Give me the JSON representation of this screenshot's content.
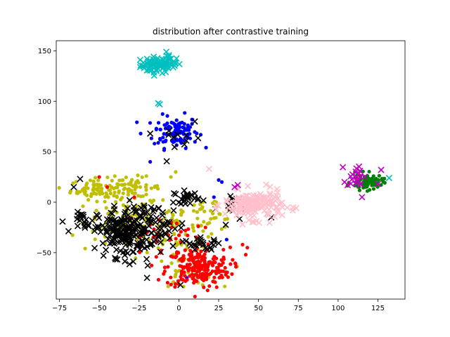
{
  "chart_data": {
    "type": "scatter",
    "title": "distribution after contrastive training",
    "xlabel": "",
    "ylabel": "",
    "xlim": [
      -77,
      142
    ],
    "ylim": [
      -96,
      160
    ],
    "x_ticks": [
      -75,
      -50,
      -25,
      0,
      25,
      50,
      75,
      100,
      125
    ],
    "y_ticks": [
      -50,
      0,
      50,
      100,
      150
    ],
    "grid": false,
    "legend": "none",
    "series": [
      {
        "color": "#00bfbf",
        "marker": "x",
        "clusters": [
          {
            "cx": -14,
            "cy": 136,
            "sx": 5,
            "sy": 4,
            "n": 70
          },
          {
            "cx": -6,
            "cy": 139,
            "sx": 3,
            "sy": 4,
            "n": 20
          }
        ],
        "points": [
          {
            "x": -13,
            "y": 98
          },
          {
            "x": -12,
            "y": 97
          },
          {
            "x": 5,
            "y": 72
          },
          {
            "x": 132,
            "y": 24
          }
        ]
      },
      {
        "color": "#0000ff",
        "marker": "dot",
        "clusters": [
          {
            "cx": -2,
            "cy": 70,
            "sx": 7,
            "sy": 8,
            "n": 110
          }
        ],
        "points": [
          {
            "x": -24,
            "y": 68
          },
          {
            "x": -18,
            "y": 40
          },
          {
            "x": 5,
            "y": -75
          },
          {
            "x": 25,
            "y": 22
          },
          {
            "x": 27,
            "y": 20
          },
          {
            "x": 30,
            "y": -37
          },
          {
            "x": 22,
            "y": 5
          }
        ]
      },
      {
        "color": "#bfbf00",
        "marker": "dot",
        "clusters": [
          {
            "cx": -52,
            "cy": 13,
            "sx": 8,
            "sy": 5,
            "n": 70
          },
          {
            "cx": -28,
            "cy": 15,
            "sx": 8,
            "sy": 5,
            "n": 50
          },
          {
            "cx": -35,
            "cy": -20,
            "sx": 12,
            "sy": 14,
            "n": 110
          },
          {
            "cx": 0,
            "cy": -25,
            "sx": 12,
            "sy": 12,
            "n": 70
          },
          {
            "cx": 20,
            "cy": -12,
            "sx": 8,
            "sy": 8,
            "n": 30
          },
          {
            "cx": 5,
            "cy": -70,
            "sx": 10,
            "sy": 8,
            "n": 30
          }
        ],
        "points": [
          {
            "x": -2,
            "y": 30
          },
          {
            "x": -5,
            "y": 25
          },
          {
            "x": 15,
            "y": -82
          }
        ]
      },
      {
        "color": "#ff0000",
        "marker": "dot",
        "clusters": [
          {
            "cx": 12,
            "cy": -65,
            "sx": 10,
            "sy": 10,
            "n": 220
          },
          {
            "cx": -10,
            "cy": -35,
            "sx": 12,
            "sy": 10,
            "n": 40
          }
        ],
        "points": [
          {
            "x": -50,
            "y": 25
          },
          {
            "x": -45,
            "y": 15
          },
          {
            "x": -28,
            "y": 5
          },
          {
            "x": 43,
            "y": -45
          },
          {
            "x": 42,
            "y": -52
          },
          {
            "x": 40,
            "y": -42
          }
        ]
      },
      {
        "color": "#000000",
        "marker": "x",
        "clusters": [
          {
            "cx": -35,
            "cy": -30,
            "sx": 8,
            "sy": 12,
            "n": 170
          },
          {
            "cx": -15,
            "cy": -25,
            "sx": 10,
            "sy": 12,
            "n": 70
          },
          {
            "cx": -58,
            "cy": -20,
            "sx": 4,
            "sy": 5,
            "n": 20
          },
          {
            "cx": 5,
            "cy": 5,
            "sx": 4,
            "sy": 3,
            "n": 25
          },
          {
            "cx": 15,
            "cy": -42,
            "sx": 6,
            "sy": 3,
            "n": 25
          },
          {
            "cx": 0,
            "cy": 64,
            "sx": 6,
            "sy": 8,
            "n": 10
          },
          {
            "cx": 35,
            "cy": -5,
            "sx": 5,
            "sy": 8,
            "n": 15
          }
        ],
        "points": [
          {
            "x": -66,
            "y": 15
          },
          {
            "x": -62,
            "y": 23
          },
          {
            "x": -20,
            "y": -75
          },
          {
            "x": 1,
            "y": -82
          },
          {
            "x": 10,
            "y": 80
          },
          {
            "x": -18,
            "y": 68
          },
          {
            "x": 58,
            "y": -15
          }
        ]
      },
      {
        "color": "#ffc0cb",
        "marker": "x",
        "clusters": [
          {
            "cx": 47,
            "cy": -3,
            "sx": 9,
            "sy": 7,
            "n": 170
          }
        ],
        "points": [
          {
            "x": 65,
            "y": -5
          },
          {
            "x": 19,
            "y": 33
          },
          {
            "x": 40,
            "y": -22
          },
          {
            "x": 30,
            "y": 2
          }
        ]
      },
      {
        "color": "#008000",
        "marker": "dot",
        "clusters": [
          {
            "cx": 118,
            "cy": 20,
            "sx": 5,
            "sy": 4,
            "n": 80
          }
        ],
        "points": []
      },
      {
        "color": "#bf00bf",
        "marker": "x",
        "clusters": [
          {
            "cx": 112,
            "cy": 27,
            "sx": 3,
            "sy": 6,
            "n": 20
          }
        ],
        "points": [
          {
            "x": 106,
            "y": 17
          },
          {
            "x": 125,
            "y": 18
          },
          {
            "x": 127,
            "y": 32
          },
          {
            "x": 115,
            "y": 5
          },
          {
            "x": 35,
            "y": 15
          },
          {
            "x": 37,
            "y": 17
          }
        ]
      }
    ]
  }
}
